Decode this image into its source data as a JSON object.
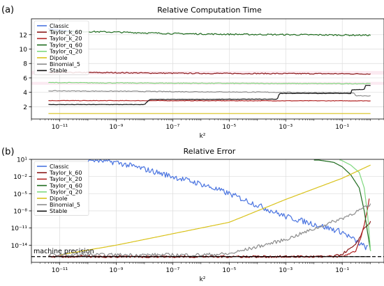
{
  "chart_data": [
    {
      "panel_label": "(a)",
      "type": "line",
      "title": "Relative Computation Time",
      "xlabel": "k²",
      "xscale": "log",
      "xlim": [
        1e-12,
        3
      ],
      "ylim": [
        0.3,
        14.2
      ],
      "x_ticks": [
        1e-11,
        1e-09,
        1e-07,
        1e-05,
        0.001,
        0.1
      ],
      "x_tick_labels": [
        "10⁻¹¹",
        "10⁻⁹",
        "10⁻⁷",
        "10⁻⁵",
        "10⁻³",
        "10⁻¹"
      ],
      "y_ticks": [
        2,
        4,
        6,
        8,
        10,
        12
      ],
      "grid": true,
      "legend_position": "top-left",
      "series": [
        {
          "name": "Classic",
          "color": "#4a74e0",
          "x": [
            4e-12,
            3e-11
          ],
          "y": [
            12.8,
            12.4
          ],
          "noise": 0.08
        },
        {
          "name": "Taylor_k_60",
          "color": "#8b1a1a",
          "x": [
            4e-12,
            1e-11,
            1e-09,
            1e-07,
            1e-05,
            0.001,
            0.1,
            1
          ],
          "y": [
            6.7,
            6.75,
            6.72,
            6.65,
            6.62,
            6.6,
            6.58,
            6.55
          ],
          "noise": 0.07
        },
        {
          "name": "Taylor_k_20",
          "color": "#b22222",
          "x": [
            4e-12,
            1
          ],
          "y": [
            2.85,
            2.82
          ],
          "noise": 0.03
        },
        {
          "name": "Taylor_q_60",
          "color": "#1e6b1e",
          "x": [
            4e-12,
            1e-11,
            1e-09,
            1e-07,
            1e-05,
            0.001,
            0.1,
            1
          ],
          "y": [
            12.45,
            12.5,
            12.35,
            12.15,
            12.05,
            12.0,
            11.95,
            11.92
          ],
          "noise": 0.1
        },
        {
          "name": "Taylor_q_20",
          "color": "#7ed87e",
          "x": [
            4e-12,
            1e-09,
            1e-05,
            0.1,
            1
          ],
          "y": [
            5.35,
            5.3,
            5.25,
            5.2,
            5.2
          ],
          "noise": 0.05
        },
        {
          "name": "Dipole",
          "color": "#d9c21a",
          "x": [
            4e-12,
            1
          ],
          "y": [
            1.05,
            1.05
          ],
          "noise": 0.0
        },
        {
          "name": "Binomial_5",
          "color": "#8c8c8c",
          "x": [
            4e-12,
            1e-09,
            1e-05,
            0.001,
            0.1,
            0.25,
            0.3,
            1
          ],
          "y": [
            4.2,
            4.15,
            4.05,
            4.0,
            3.95,
            3.95,
            3.55,
            3.5
          ],
          "noise": 0.05
        },
        {
          "name": "Stable",
          "color": "#111111",
          "x": [
            4e-12,
            1e-08,
            1.5e-08,
            0.0005,
            0.0006,
            0.2,
            0.21,
            0.6,
            0.65,
            1
          ],
          "y": [
            2.3,
            2.3,
            3.0,
            3.05,
            3.85,
            3.85,
            4.35,
            4.4,
            4.95,
            4.95
          ],
          "noise": 0.03
        }
      ]
    },
    {
      "panel_label": "(b)",
      "type": "line",
      "title": "Relative Error",
      "xlabel": "k²",
      "xscale": "log",
      "yscale": "log",
      "xlim": [
        1e-12,
        3
      ],
      "ylim": [
        1e-17,
        10
      ],
      "x_ticks": [
        1e-11,
        1e-09,
        1e-07,
        1e-05,
        0.001,
        0.1
      ],
      "x_tick_labels": [
        "10⁻¹¹",
        "10⁻⁹",
        "10⁻⁷",
        "10⁻⁵",
        "10⁻³",
        "10⁻¹"
      ],
      "y_ticks": [
        10,
        0.01,
        1e-05,
        1e-08,
        1e-11,
        1e-14
      ],
      "y_tick_labels": [
        "10¹",
        "10⁻²",
        "10⁻⁵",
        "10⁻⁸",
        "10⁻¹¹",
        "10⁻¹⁴"
      ],
      "grid": true,
      "legend_position": "top-left",
      "annotation": "machine precision",
      "machine_precision": 1e-16,
      "series": [
        {
          "name": "Classic",
          "color": "#4a74e0",
          "x": [
            1e-10,
            1e-09,
            1e-08,
            1e-07,
            1e-06,
            1e-05,
            0.0001,
            0.001,
            0.01,
            0.1,
            0.5,
            0.8
          ],
          "y": [
            10,
            3,
            0.2,
            0.01,
            0.0005,
            1e-05,
            1e-07,
            1e-09,
            5e-11,
            2e-12,
            1e-14,
            3e-15
          ],
          "noise": 0.5
        },
        {
          "name": "Taylor_k_60",
          "color": "#8b1a1a",
          "x": [
            4e-12,
            1e-05,
            0.001,
            0.05,
            0.1,
            0.3,
            0.6,
            1
          ],
          "y": [
            1e-16,
            1e-16,
            1e-16,
            1e-16,
            3e-16,
            1e-14,
            1e-11,
            1e-10
          ],
          "noise": 0.2
        },
        {
          "name": "Taylor_k_20",
          "color": "#b22222",
          "x": [
            4e-12,
            0.1,
            0.3,
            0.5,
            0.7,
            0.9
          ],
          "y": [
            1e-16,
            1e-16,
            1e-15,
            1e-12,
            1e-09,
            1e-06
          ],
          "noise": 0.15
        },
        {
          "name": "Taylor_q_60",
          "color": "#1e6b1e",
          "x": [
            0.01,
            0.05,
            0.1,
            0.2,
            0.4,
            0.6,
            0.8,
            1
          ],
          "y": [
            10,
            3,
            0.5,
            0.02,
            0.0001,
            1e-08,
            1e-12,
            1e-15
          ],
          "noise": 0.0
        },
        {
          "name": "Taylor_q_20",
          "color": "#7ed87e",
          "x": [
            0.08,
            0.2,
            0.4,
            0.6,
            0.8,
            1
          ],
          "y": [
            10,
            1,
            0.05,
            0.0001,
            1e-09,
            1e-15
          ],
          "noise": 0.0
        },
        {
          "name": "Dipole",
          "color": "#d9c21a",
          "x": [
            1e-11,
            1e-09,
            1e-07,
            1e-05,
            0.001,
            0.1,
            1
          ],
          "y": [
            2e-16,
            1e-14,
            1e-12,
            1e-10,
            1e-06,
            0.005,
            1
          ],
          "noise": 0.0
        },
        {
          "name": "Binomial_5",
          "color": "#8c8c8c",
          "x": [
            4e-12,
            1e-06,
            1e-05,
            0.001,
            0.1,
            1
          ],
          "y": [
            2e-16,
            2e-16,
            3e-16,
            1e-13,
            5e-10,
            1e-07
          ],
          "noise": 0.3
        },
        {
          "name": "Stable",
          "color": "#111111",
          "x": [
            4e-12,
            1
          ],
          "y": [
            1e-16,
            1e-16
          ],
          "noise": 0.0
        }
      ]
    }
  ]
}
